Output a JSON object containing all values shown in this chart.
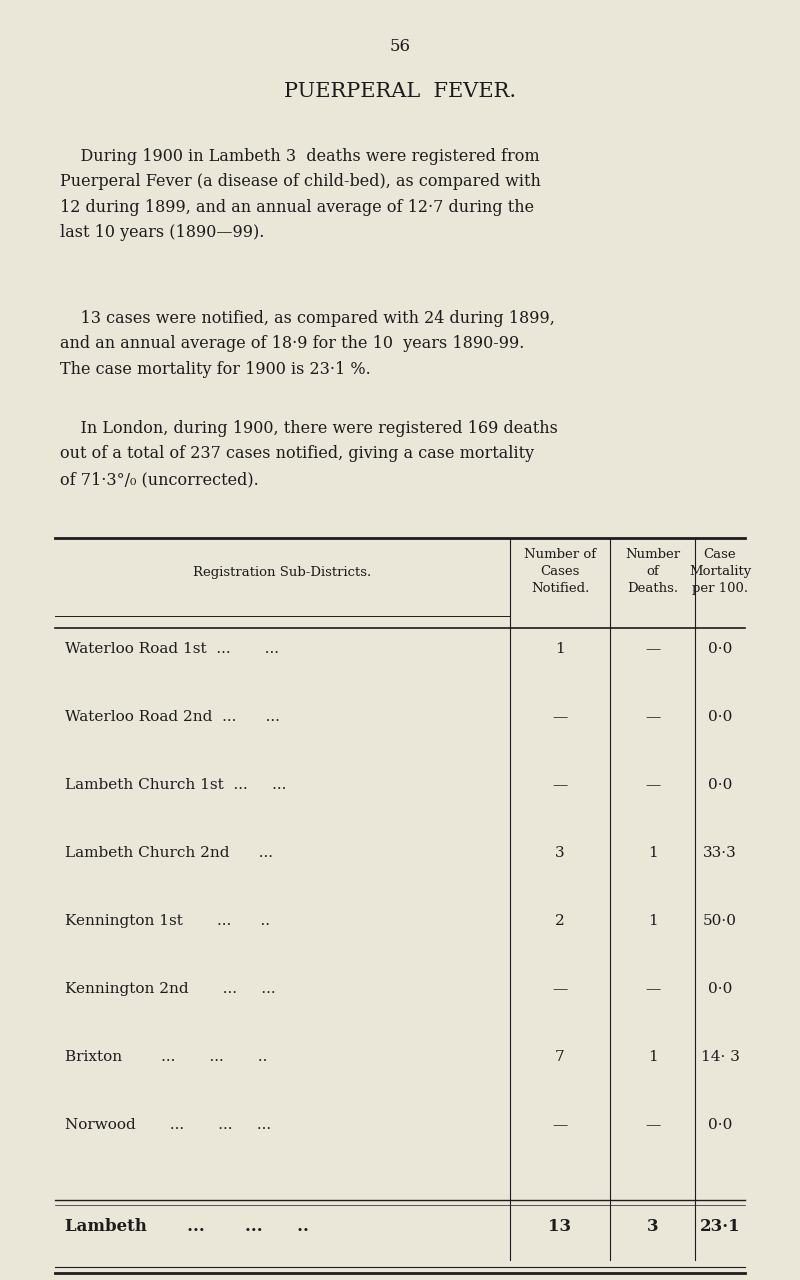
{
  "page_number": "56",
  "title": "PUERPERAL  FEVER.",
  "para1_indent": "    During 1900 in Lambeth 3  deaths were registered from\nPuerperal Fever (a disease of child-bed), as compared with\n12 during 1899, and an annual average of 12·7 during the\nlast 10 years (1890—99).",
  "para2_indent": "    13 cases were notified, as compared with 24 during 1899,\nand an annual average of 18·9 for the 10  years 1890-99.\nThe case mortality for 1900 is 23·1 %.",
  "para3_indent": "    In London, during 1900, there were registered 169 deaths\nout of a total of 237 cases notified, giving a case mortality\nof 71·3°/₀ (uncorrected).",
  "col_header0": "Registration Sub-Districts.",
  "col_header1": "Number of\nCases\nNotified.",
  "col_header2": "Number\nof\nDeaths.",
  "col_header3": "Case\nMortality\nper 100.",
  "table_rows": [
    [
      "Waterloo Road 1st  ...       ...",
      "1",
      "—",
      "0·0"
    ],
    [
      "Waterloo Road 2nd  ...      ...",
      "—",
      "—",
      "0·0"
    ],
    [
      "Lambeth Church 1st  ...     ...",
      "—",
      "—",
      "0·0"
    ],
    [
      "Lambeth Church 2nd      ...",
      "3",
      "1",
      "33·3"
    ],
    [
      "Kennington 1st       ...      ..",
      "2",
      "1",
      "50·0"
    ],
    [
      "Kennington 2nd       ...     ...",
      "—",
      "—",
      "0·0"
    ],
    [
      "Brixton        ...       ...       ..",
      "7",
      "1",
      "14· 3"
    ],
    [
      "Norwood       ...       ...     ...",
      "—",
      "—",
      "0·0"
    ]
  ],
  "total_row": [
    "Lambeth       ...       ...      ..",
    "13",
    "3",
    "23·1"
  ],
  "bg_color": "#eae6d8",
  "text_color": "#1c1c1c",
  "line_color": "#1c1c1c"
}
